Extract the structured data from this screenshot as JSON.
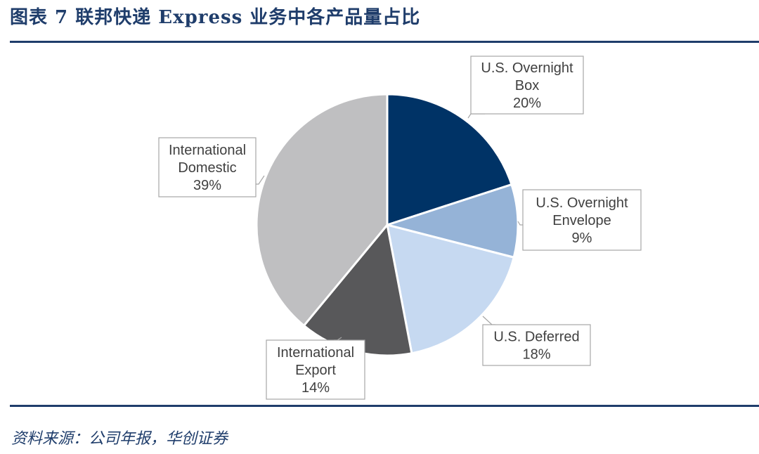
{
  "title": "图表 7 联邦快递 Express 业务中各产品量占比",
  "source": "资料来源：公司年报，华创证券",
  "chart_data": {
    "type": "pie",
    "title": "图表 7 联邦快递 Express 业务中各产品量占比",
    "start_angle_deg": 0,
    "direction": "clockwise",
    "slices": [
      {
        "label": [
          "U.S. Overnight",
          "Box"
        ],
        "value": 20,
        "display": "20%",
        "color": "#003366"
      },
      {
        "label": [
          "U.S. Overnight",
          "Envelope"
        ],
        "value": 9,
        "display": "9%",
        "color": "#95b3d7"
      },
      {
        "label": [
          "U.S. Deferred"
        ],
        "value": 18,
        "display": "18%",
        "color": "#c6d9f1"
      },
      {
        "label": [
          "International",
          "Export"
        ],
        "value": 14,
        "display": "14%",
        "color": "#58585a"
      },
      {
        "label": [
          "International",
          "Domestic"
        ],
        "value": 39,
        "display": "39%",
        "color": "#bfbfc1"
      }
    ],
    "legend": "none",
    "data_labels": "callout"
  }
}
